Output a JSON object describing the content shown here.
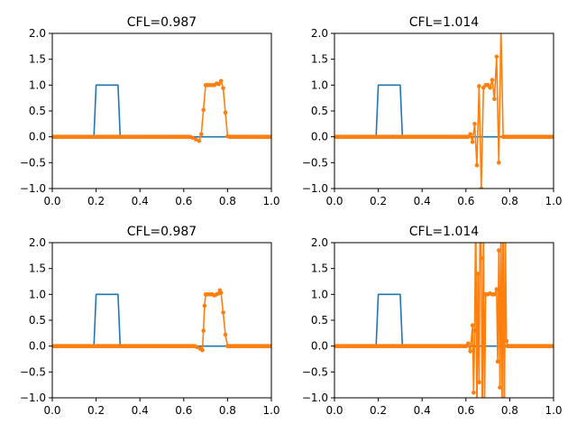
{
  "chart_data": [
    {
      "type": "line",
      "title": "CFL=0.987",
      "xlim": [
        0,
        1
      ],
      "ylim": [
        -1,
        2
      ],
      "xticks": [
        "0.0",
        "0.2",
        "0.4",
        "0.6",
        "0.8",
        "1.0"
      ],
      "yticks": [
        "−1.0",
        "−0.5",
        "0.0",
        "0.5",
        "1.0",
        "1.5",
        "2.0"
      ],
      "grid": false,
      "series": [
        {
          "color": "#1f77b4",
          "marker": "none",
          "x": [
            0,
            0.19,
            0.2,
            0.3,
            0.31,
            1
          ],
          "y": [
            0,
            0,
            1,
            1,
            0,
            0
          ]
        },
        {
          "color": "#ff7f0e",
          "marker": "circle",
          "x": [
            0,
            0.6,
            0.62,
            0.64,
            0.655,
            0.67,
            0.68,
            0.69,
            0.7,
            0.71,
            0.72,
            0.73,
            0.74,
            0.75,
            0.76,
            0.77,
            0.78,
            0.79,
            0.8,
            0.81,
            0.82,
            1
          ],
          "y": [
            0,
            0,
            0,
            -0.02,
            -0.05,
            -0.08,
            0.05,
            0.52,
            1.0,
            1.0,
            1.0,
            1.0,
            1.0,
            1.03,
            1.02,
            1.08,
            0.94,
            0.47,
            0.01,
            0,
            0,
            0
          ]
        }
      ]
    },
    {
      "type": "line",
      "title": "CFL=1.014",
      "xlim": [
        0,
        1
      ],
      "ylim": [
        -1,
        2
      ],
      "xticks": [
        "0.0",
        "0.2",
        "0.4",
        "0.6",
        "0.8",
        "1.0"
      ],
      "yticks": [
        "−1.0",
        "−0.5",
        "0.0",
        "0.5",
        "1.0",
        "1.5",
        "2.0"
      ],
      "grid": false,
      "series": [
        {
          "color": "#1f77b4",
          "marker": "none",
          "x": [
            0,
            0.19,
            0.2,
            0.3,
            0.31,
            1
          ],
          "y": [
            0,
            0,
            1,
            1,
            0,
            0
          ]
        },
        {
          "color": "#ff7f0e",
          "marker": "circle",
          "x": [
            0,
            0.6,
            0.62,
            0.63,
            0.64,
            0.65,
            0.66,
            0.67,
            0.68,
            0.69,
            0.7,
            0.71,
            0.72,
            0.73,
            0.74,
            0.75,
            0.76,
            0.77,
            0.78,
            0.79,
            0.8,
            1
          ],
          "y": [
            0,
            0,
            0.05,
            -0.1,
            0.25,
            -0.55,
            0.98,
            -1.0,
            0.95,
            1.0,
            1.0,
            0.95,
            1.1,
            0.73,
            1.55,
            -0.5,
            2.1,
            0.0,
            0.0,
            0.0,
            0.0,
            0
          ]
        }
      ]
    },
    {
      "type": "line",
      "title": "CFL=0.987",
      "xlim": [
        0,
        1
      ],
      "ylim": [
        -1,
        2
      ],
      "xticks": [
        "0.0",
        "0.2",
        "0.4",
        "0.6",
        "0.8",
        "1.0"
      ],
      "yticks": [
        "−1.0",
        "−0.5",
        "0.0",
        "0.5",
        "1.0",
        "1.5",
        "2.0"
      ],
      "grid": false,
      "series": [
        {
          "color": "#1f77b4",
          "marker": "none",
          "x": [
            0,
            0.19,
            0.2,
            0.3,
            0.31,
            1
          ],
          "y": [
            0,
            0,
            1,
            1,
            0,
            0
          ]
        },
        {
          "color": "#ff7f0e",
          "marker": "circle",
          "x": [
            0,
            0.64,
            0.66,
            0.675,
            0.685,
            0.69,
            0.695,
            0.7,
            0.71,
            0.72,
            0.73,
            0.74,
            0.75,
            0.76,
            0.765,
            0.77,
            0.78,
            0.79,
            0.8,
            0.82,
            1
          ],
          "y": [
            0,
            0,
            -0.02,
            -0.05,
            -0.08,
            0.3,
            0.78,
            1.0,
            1.0,
            1.0,
            1.0,
            0.98,
            1.0,
            1.02,
            1.08,
            1.03,
            0.65,
            0.22,
            0.0,
            0,
            0
          ]
        }
      ]
    },
    {
      "type": "line",
      "title": "CFL=1.014",
      "xlim": [
        0,
        1
      ],
      "ylim": [
        -1,
        2
      ],
      "xticks": [
        "0.0",
        "0.2",
        "0.4",
        "0.6",
        "0.8",
        "1.0"
      ],
      "yticks": [
        "−1.0",
        "−0.5",
        "0.0",
        "0.5",
        "1.0",
        "1.5",
        "2.0"
      ],
      "grid": false,
      "series": [
        {
          "color": "#1f77b4",
          "marker": "none",
          "x": [
            0,
            0.19,
            0.2,
            0.3,
            0.31,
            1
          ],
          "y": [
            0,
            0,
            1,
            1,
            0,
            0
          ]
        },
        {
          "color": "#ff7f0e",
          "marker": "circle",
          "x": [
            0,
            0.6,
            0.61,
            0.62,
            0.63,
            0.635,
            0.64,
            0.645,
            0.65,
            0.655,
            0.66,
            0.665,
            0.67,
            0.675,
            0.68,
            0.685,
            0.69,
            0.7,
            0.71,
            0.72,
            0.73,
            0.74,
            0.745,
            0.75,
            0.755,
            0.76,
            0.765,
            0.77,
            0.775,
            0.78,
            0.785,
            0.79,
            0.8,
            0.81,
            1
          ],
          "y": [
            0,
            0,
            0.05,
            -0.1,
            0.4,
            -0.9,
            0.3,
            2.8,
            -1.5,
            1.4,
            -0.7,
            3.0,
            1.7,
            -1.8,
            2.4,
            -1.2,
            1.0,
            1.0,
            1.02,
            1.0,
            1.0,
            1.1,
            -0.3,
            1.85,
            -0.8,
            2.6,
            -1.5,
            3.0,
            -2.0,
            2.2,
            0.1,
            0.0,
            0.0,
            0.0,
            0
          ]
        }
      ]
    }
  ]
}
